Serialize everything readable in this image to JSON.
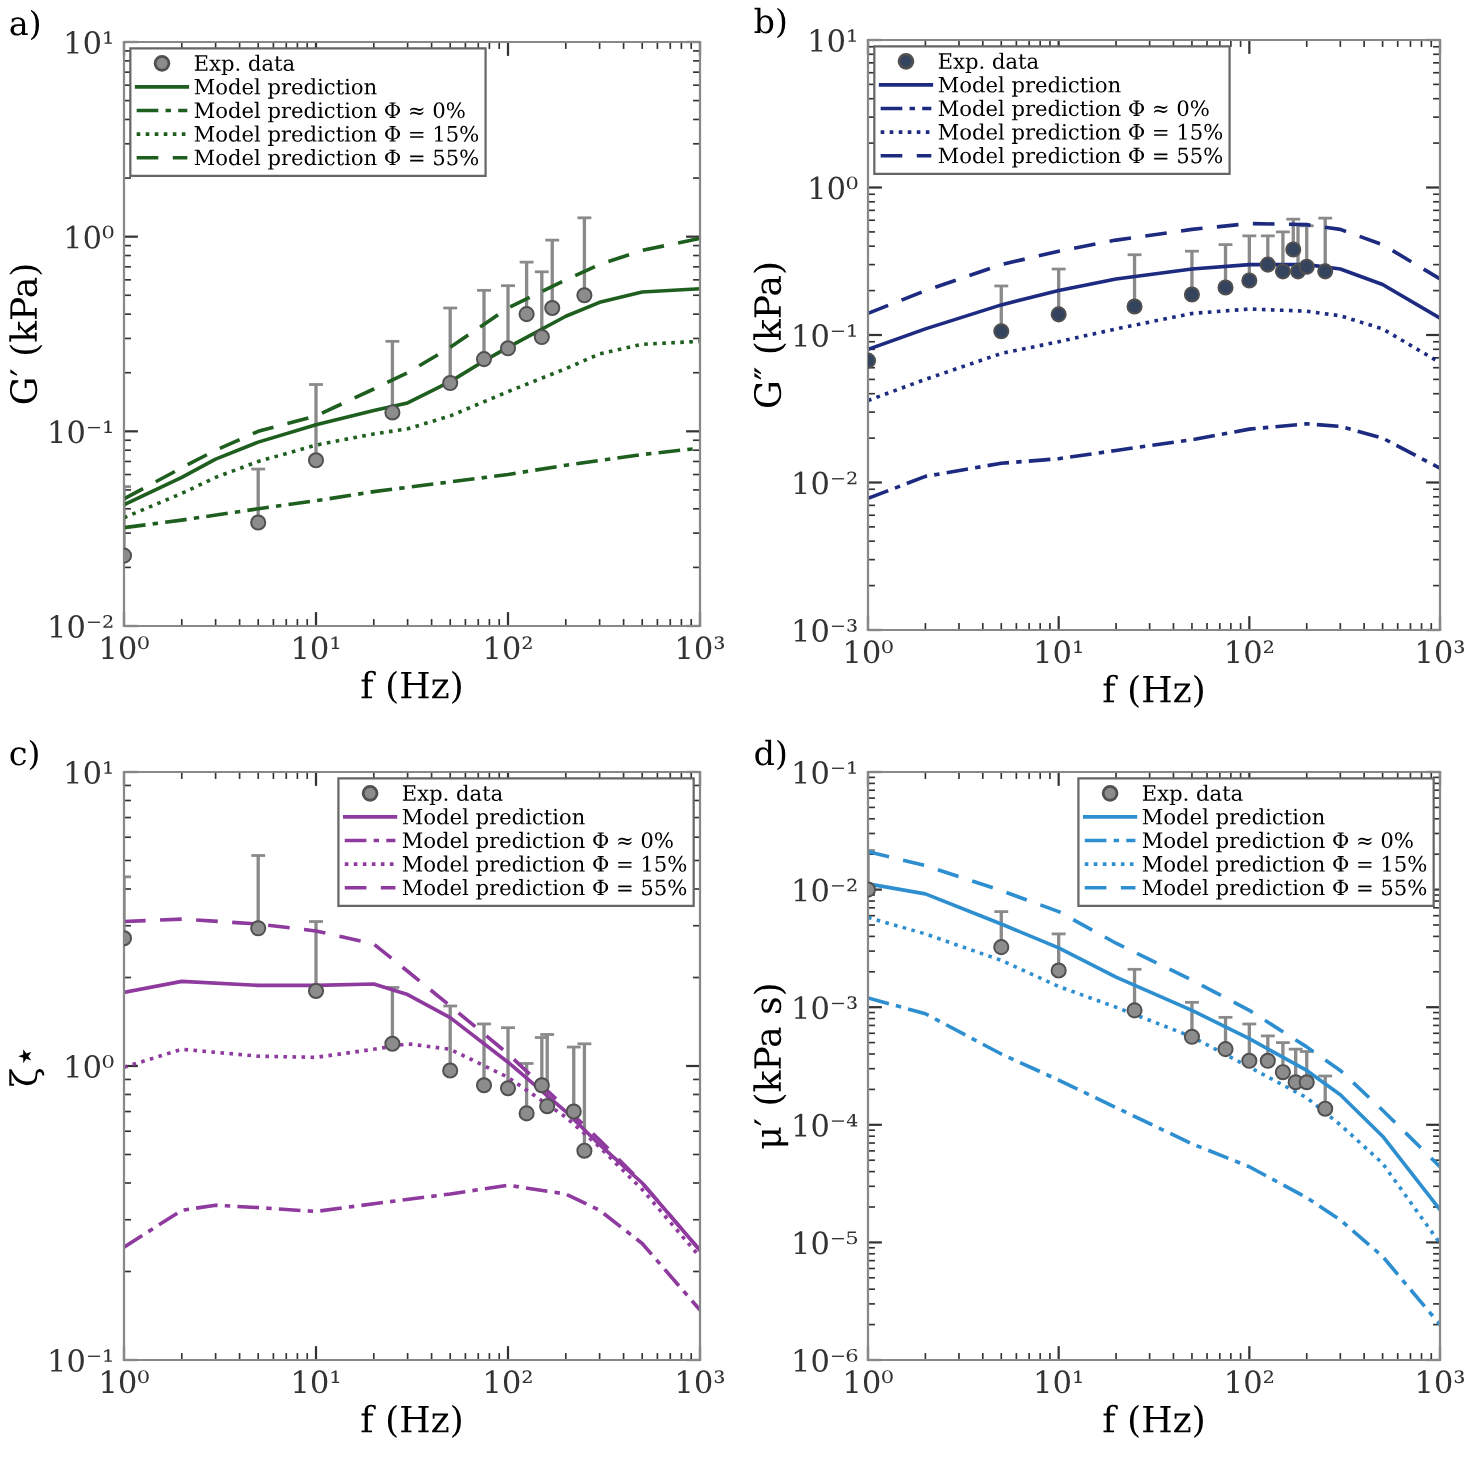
{
  "chart_data": [
    {
      "type": "line",
      "title": "a)",
      "xlabel": "f (Hz)",
      "ylabel": "G′ (kPa)",
      "log": "xy",
      "legend": "top left",
      "xlim": [
        1,
        1000
      ],
      "ylim": [
        0.01,
        10
      ],
      "xticks": [
        {
          "value": 1,
          "label": "10⁰"
        },
        {
          "value": 10,
          "label": "10¹"
        },
        {
          "value": 100,
          "label": "10²"
        },
        {
          "value": 1000,
          "label": "10³"
        }
      ],
      "yticks": [
        {
          "value": 0.01,
          "label": "10⁻²"
        },
        {
          "value": 0.1,
          "label": "10⁻¹"
        },
        {
          "value": 1,
          "label": "10⁰"
        },
        {
          "value": 10,
          "label": "10¹"
        }
      ],
      "series": [
        {
          "name": "Exp. data",
          "type": "scatter",
          "marker": "circle",
          "color": "#8c8c8c",
          "x": [
            1,
            5,
            10,
            25,
            50,
            75,
            100,
            125,
            150,
            170,
            250
          ],
          "values": [
            0.023,
            0.034,
            0.071,
            0.125,
            0.177,
            0.235,
            0.267,
            0.4,
            0.305,
            0.43,
            0.5
          ],
          "errors": [
            [
              0.023,
              0.052
            ],
            [
              0.034,
              0.064
            ],
            [
              0.071,
              0.174
            ],
            [
              0.125,
              0.29
            ],
            [
              0.177,
              0.43
            ],
            [
              0.235,
              0.53
            ],
            [
              0.267,
              0.56
            ],
            [
              0.4,
              0.74
            ],
            [
              0.305,
              0.66
            ],
            [
              0.43,
              0.96
            ],
            [
              0.5,
              1.25
            ]
          ]
        },
        {
          "name": "Model prediction",
          "type": "line",
          "line_style": "solid",
          "color": "#1e5e1e",
          "x": [
            1,
            2,
            3,
            5,
            10,
            20,
            30,
            50,
            75,
            100,
            200,
            300,
            500,
            1000
          ],
          "values": [
            0.042,
            0.058,
            0.072,
            0.088,
            0.108,
            0.128,
            0.14,
            0.18,
            0.23,
            0.27,
            0.39,
            0.46,
            0.52,
            0.54
          ]
        },
        {
          "name": "Model prediction Φ ≈ 0%",
          "type": "line",
          "line_style": "dashdot",
          "color": "#1e5e1e",
          "x": [
            1,
            2,
            5,
            10,
            20,
            50,
            100,
            200,
            500,
            1000
          ],
          "values": [
            0.032,
            0.035,
            0.04,
            0.044,
            0.049,
            0.055,
            0.06,
            0.067,
            0.076,
            0.082
          ]
        },
        {
          "name": "Model prediction Φ = 15%",
          "type": "line",
          "line_style": "dotted",
          "color": "#1e5e1e",
          "x": [
            1,
            2,
            3,
            5,
            10,
            20,
            30,
            50,
            100,
            200,
            300,
            500,
            1000
          ],
          "values": [
            0.036,
            0.048,
            0.058,
            0.07,
            0.085,
            0.097,
            0.103,
            0.12,
            0.16,
            0.21,
            0.25,
            0.28,
            0.29
          ]
        },
        {
          "name": "Model prediction Φ = 55%",
          "type": "line",
          "line_style": "dashed",
          "color": "#1e5e1e",
          "x": [
            1,
            2,
            3,
            5,
            10,
            20,
            30,
            50,
            100,
            200,
            300,
            500,
            1000
          ],
          "values": [
            0.045,
            0.065,
            0.08,
            0.1,
            0.12,
            0.165,
            0.2,
            0.27,
            0.43,
            0.6,
            0.72,
            0.85,
            0.98
          ]
        }
      ]
    },
    {
      "type": "line",
      "title": "b)",
      "xlabel": "f (Hz)",
      "ylabel": "G″ (kPa)",
      "log": "xy",
      "legend": "top left",
      "xlim": [
        1,
        1000
      ],
      "ylim": [
        0.001,
        10
      ],
      "xticks": [
        {
          "value": 1,
          "label": "10⁰"
        },
        {
          "value": 10,
          "label": "10¹"
        },
        {
          "value": 100,
          "label": "10²"
        },
        {
          "value": 1000,
          "label": "10³"
        }
      ],
      "yticks": [
        {
          "value": 0.001,
          "label": "10⁻³"
        },
        {
          "value": 0.01,
          "label": "10⁻²"
        },
        {
          "value": 0.1,
          "label": "10⁻¹"
        },
        {
          "value": 1,
          "label": "10⁰"
        },
        {
          "value": 10,
          "label": "10¹"
        }
      ],
      "series": [
        {
          "name": "Exp. data",
          "type": "scatter",
          "marker": "circle",
          "color": "#34435e",
          "x": [
            1,
            5,
            10,
            25,
            50,
            75,
            100,
            125,
            150,
            170,
            180,
            200,
            250
          ],
          "values": [
            0.067,
            0.106,
            0.138,
            0.156,
            0.188,
            0.21,
            0.234,
            0.3,
            0.27,
            0.38,
            0.27,
            0.29,
            0.27
          ],
          "errors": [
            null,
            [
              0.106,
              0.215
            ],
            [
              0.138,
              0.28
            ],
            [
              0.156,
              0.35
            ],
            [
              0.188,
              0.37
            ],
            [
              0.21,
              0.41
            ],
            [
              0.234,
              0.47
            ],
            [
              0.3,
              0.47
            ],
            [
              0.27,
              0.5
            ],
            [
              0.38,
              0.61
            ],
            [
              0.27,
              0.56
            ],
            [
              0.29,
              0.55
            ],
            [
              0.27,
              0.62
            ]
          ]
        },
        {
          "name": "Model prediction",
          "type": "line",
          "line_style": "solid",
          "color": "#1c2a80",
          "x": [
            1,
            2,
            5,
            10,
            20,
            50,
            100,
            200,
            300,
            500,
            1000
          ],
          "values": [
            0.08,
            0.11,
            0.16,
            0.2,
            0.24,
            0.28,
            0.3,
            0.3,
            0.28,
            0.22,
            0.13
          ]
        },
        {
          "name": "Model prediction Φ ≈ 0%",
          "type": "line",
          "line_style": "dashdot",
          "color": "#1c2a80",
          "x": [
            1,
            2,
            5,
            10,
            20,
            50,
            100,
            200,
            300,
            500,
            1000
          ],
          "values": [
            0.0078,
            0.011,
            0.0135,
            0.0145,
            0.0165,
            0.0195,
            0.023,
            0.025,
            0.024,
            0.02,
            0.0125
          ]
        },
        {
          "name": "Model prediction Φ = 15%",
          "type": "line",
          "line_style": "dotted",
          "color": "#1c2a80",
          "x": [
            1,
            2,
            5,
            10,
            20,
            50,
            100,
            200,
            300,
            500,
            1000
          ],
          "values": [
            0.036,
            0.05,
            0.075,
            0.09,
            0.11,
            0.14,
            0.15,
            0.145,
            0.135,
            0.11,
            0.065
          ]
        },
        {
          "name": "Model prediction Φ = 55%",
          "type": "line",
          "line_style": "dashed",
          "color": "#1c2a80",
          "x": [
            1,
            2,
            5,
            10,
            20,
            50,
            100,
            200,
            300,
            500,
            1000
          ],
          "values": [
            0.14,
            0.2,
            0.3,
            0.37,
            0.44,
            0.52,
            0.57,
            0.56,
            0.52,
            0.41,
            0.24
          ]
        }
      ]
    },
    {
      "type": "line",
      "title": "c)",
      "xlabel": "f (Hz)",
      "ylabel": "ζ⋆",
      "log": "xy",
      "legend": "top right",
      "xlim": [
        1,
        1000
      ],
      "ylim": [
        0.1,
        10
      ],
      "xticks": [
        {
          "value": 1,
          "label": "10⁰"
        },
        {
          "value": 10,
          "label": "10¹"
        },
        {
          "value": 100,
          "label": "10²"
        },
        {
          "value": 1000,
          "label": "10³"
        }
      ],
      "yticks": [
        {
          "value": 0.1,
          "label": "10⁻¹"
        },
        {
          "value": 1,
          "label": "10⁰"
        },
        {
          "value": 10,
          "label": "10¹"
        }
      ],
      "series": [
        {
          "name": "Exp. data",
          "type": "scatter",
          "marker": "circle",
          "color": "#8c8c8c",
          "x": [
            1,
            5,
            10,
            25,
            50,
            75,
            100,
            125,
            150,
            160,
            220,
            250
          ],
          "values": [
            2.72,
            2.94,
            1.8,
            1.19,
            0.965,
            0.86,
            0.84,
            0.69,
            0.86,
            0.73,
            0.7,
            0.515
          ],
          "errors": [
            [
              2.72,
              4.4
            ],
            [
              2.94,
              5.2
            ],
            [
              1.8,
              3.1
            ],
            [
              1.19,
              1.85
            ],
            [
              0.965,
              1.6
            ],
            [
              0.86,
              1.39
            ],
            [
              0.84,
              1.35
            ],
            [
              0.69,
              1.02
            ],
            [
              0.86,
              1.25
            ],
            [
              0.73,
              1.28
            ],
            [
              0.7,
              1.16
            ],
            [
              0.515,
              1.19
            ]
          ]
        },
        {
          "name": "Model prediction",
          "type": "line",
          "line_style": "solid",
          "color": "#8e3a9e",
          "x": [
            1,
            2,
            5,
            10,
            20,
            30,
            50,
            100,
            200,
            300,
            500,
            1000
          ],
          "values": [
            1.78,
            1.94,
            1.88,
            1.88,
            1.9,
            1.75,
            1.46,
            1.03,
            0.7,
            0.54,
            0.4,
            0.236
          ]
        },
        {
          "name": "Model prediction Φ ≈ 0%",
          "type": "line",
          "line_style": "dashdot",
          "color": "#8e3a9e",
          "x": [
            1,
            2,
            3,
            5,
            10,
            20,
            50,
            100,
            200,
            300,
            500,
            1000
          ],
          "values": [
            0.242,
            0.323,
            0.336,
            0.33,
            0.32,
            0.34,
            0.367,
            0.393,
            0.367,
            0.323,
            0.249,
            0.148
          ]
        },
        {
          "name": "Model prediction Φ = 15%",
          "type": "line",
          "line_style": "dotted",
          "color": "#8e3a9e",
          "x": [
            1,
            2,
            5,
            10,
            20,
            30,
            50,
            100,
            200,
            300,
            500,
            1000
          ],
          "values": [
            0.99,
            1.14,
            1.08,
            1.07,
            1.14,
            1.19,
            1.14,
            0.915,
            0.67,
            0.53,
            0.38,
            0.224
          ]
        },
        {
          "name": "Model prediction Φ = 55%",
          "type": "line",
          "line_style": "dashed",
          "color": "#8e3a9e",
          "x": [
            1,
            2,
            5,
            10,
            20,
            30,
            50,
            100,
            200,
            300,
            500,
            1000
          ],
          "values": [
            3.1,
            3.16,
            3.04,
            2.88,
            2.6,
            2.1,
            1.6,
            1.1,
            0.72,
            0.56,
            0.4,
            0.236
          ]
        }
      ]
    },
    {
      "type": "line",
      "title": "d)",
      "xlabel": "f (Hz)",
      "ylabel": "μ′ (kPa s)",
      "log": "xy",
      "legend": "top right",
      "xlim": [
        1,
        1000
      ],
      "ylim": [
        1e-06,
        0.1
      ],
      "xticks": [
        {
          "value": 1,
          "label": "10⁰"
        },
        {
          "value": 10,
          "label": "10¹"
        },
        {
          "value": 100,
          "label": "10²"
        },
        {
          "value": 1000,
          "label": "10³"
        }
      ],
      "yticks": [
        {
          "value": 1e-06,
          "label": "10⁻⁶"
        },
        {
          "value": 1e-05,
          "label": "10⁻⁵"
        },
        {
          "value": 0.0001,
          "label": "10⁻⁴"
        },
        {
          "value": 0.001,
          "label": "10⁻³"
        },
        {
          "value": 0.01,
          "label": "10⁻²"
        },
        {
          "value": 0.1,
          "label": "10⁻¹"
        }
      ],
      "series": [
        {
          "name": "Exp. data",
          "type": "scatter",
          "marker": "circle",
          "color": "#8c8c8c",
          "x": [
            1,
            5,
            10,
            25,
            50,
            75,
            100,
            125,
            150,
            175,
            200,
            250
          ],
          "values": [
            0.01,
            0.00324,
            0.00205,
            0.00094,
            0.00056,
            0.00044,
            0.00035,
            0.00035,
            0.00028,
            0.00023,
            0.00023,
            0.000137
          ],
          "errors": [
            [
              0.01,
              0.0215
            ],
            [
              0.00324,
              0.0065
            ],
            [
              0.00205,
              0.0042
            ],
            [
              0.00094,
              0.0021
            ],
            [
              0.00056,
              0.0011
            ],
            [
              0.00044,
              0.00082
            ],
            [
              0.00035,
              0.00072
            ],
            [
              0.00035,
              0.00057
            ],
            [
              0.00028,
              0.0005
            ],
            [
              0.00023,
              0.00044
            ],
            [
              0.00023,
              0.00042
            ],
            [
              0.000137,
              0.00026
            ]
          ]
        },
        {
          "name": "Model prediction",
          "type": "line",
          "line_style": "solid",
          "color": "#2e8fd0",
          "x": [
            1,
            2,
            5,
            10,
            20,
            50,
            100,
            200,
            300,
            500,
            1000
          ],
          "values": [
            0.0112,
            0.0092,
            0.0051,
            0.0032,
            0.0018,
            0.00094,
            0.00054,
            0.00029,
            0.00018,
            8e-05,
            1.9e-05
          ]
        },
        {
          "name": "Model prediction Φ ≈ 0%",
          "type": "line",
          "line_style": "dashdot",
          "color": "#2e8fd0",
          "x": [
            1,
            2,
            5,
            10,
            20,
            50,
            100,
            200,
            300,
            500,
            1000
          ],
          "values": [
            0.0012,
            0.00088,
            0.0004,
            0.00024,
            0.00014,
            6.9e-05,
            4.4e-05,
            2.4e-05,
            1.55e-05,
            7.6e-06,
            2e-06
          ]
        },
        {
          "name": "Model prediction Φ = 15%",
          "type": "line",
          "line_style": "dotted",
          "color": "#2e8fd0",
          "x": [
            1,
            2,
            5,
            10,
            20,
            50,
            100,
            200,
            300,
            500,
            1000
          ],
          "values": [
            0.0058,
            0.0042,
            0.0025,
            0.0015,
            0.001,
            0.00056,
            0.00031,
            0.00017,
            0.0001,
            4.7e-05,
            9.8e-06
          ]
        },
        {
          "name": "Model prediction Φ = 55%",
          "type": "line",
          "line_style": "dashed",
          "color": "#2e8fd0",
          "x": [
            1,
            2,
            5,
            10,
            20,
            50,
            100,
            200,
            300,
            500,
            1000
          ],
          "values": [
            0.021,
            0.016,
            0.0098,
            0.0065,
            0.0035,
            0.0017,
            0.00094,
            0.00046,
            0.00029,
            0.000133,
            4.4e-05
          ]
        }
      ]
    }
  ]
}
